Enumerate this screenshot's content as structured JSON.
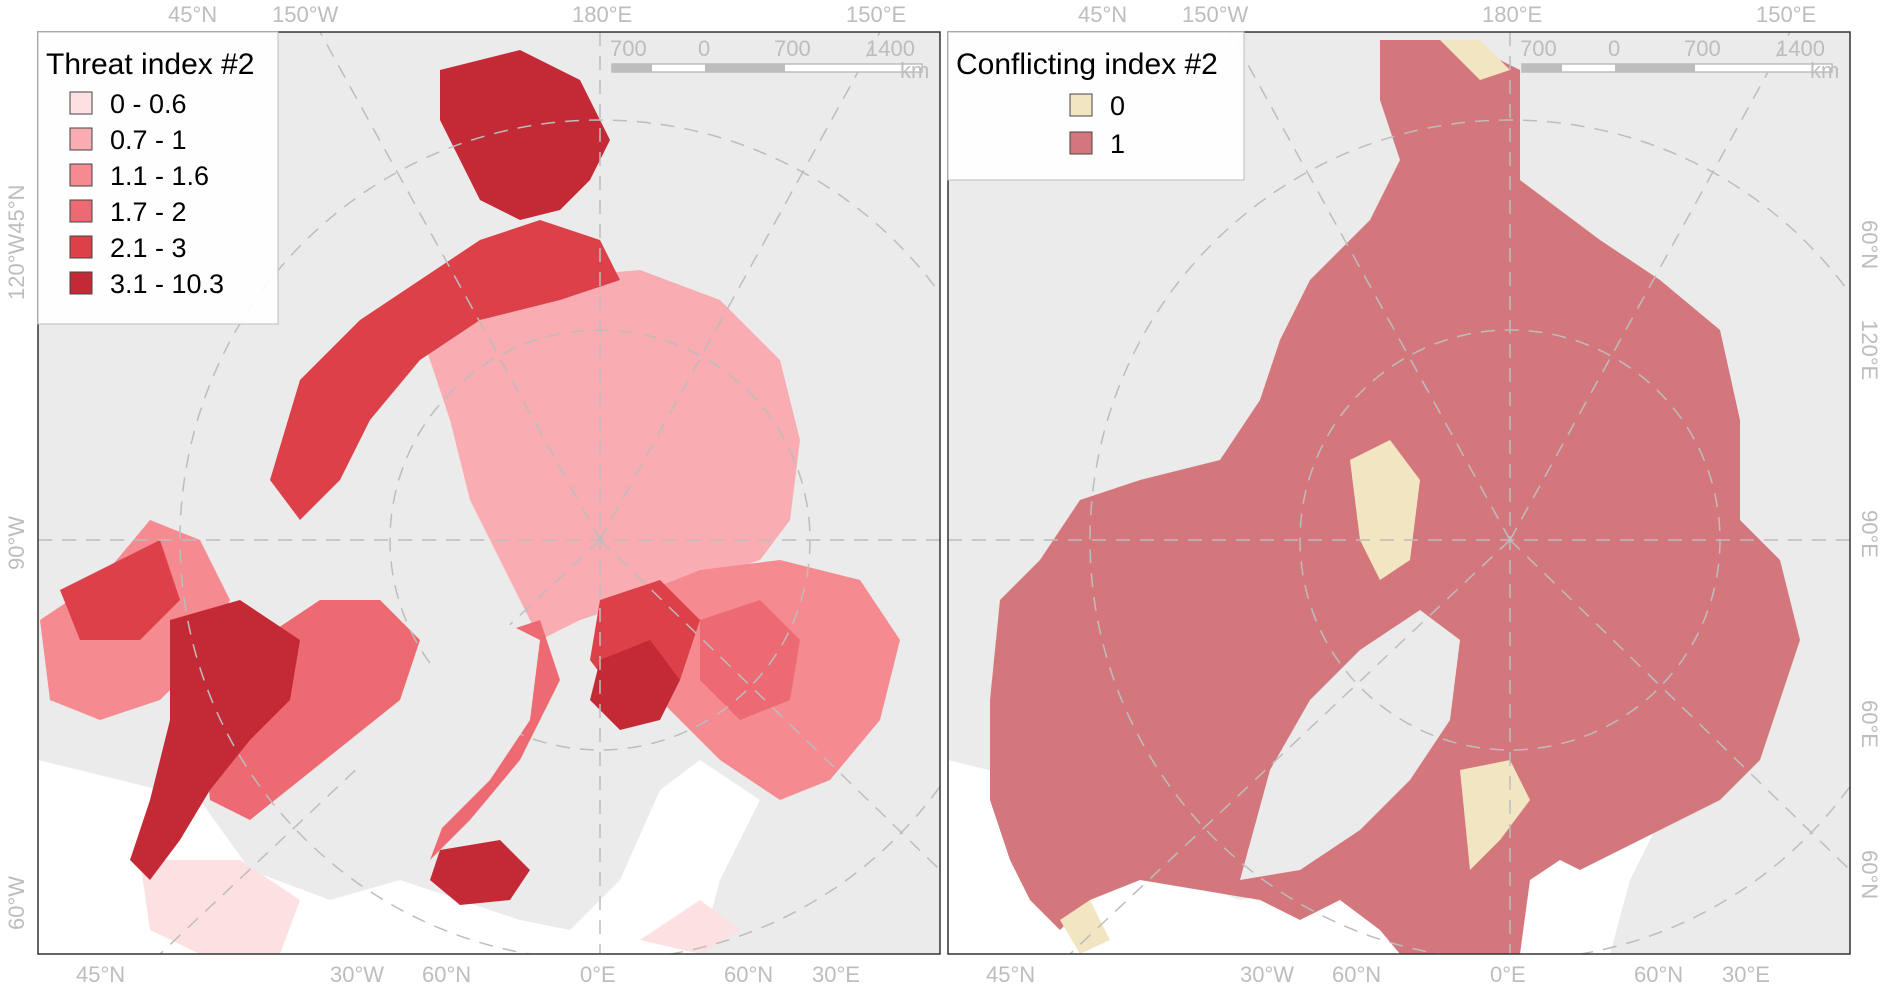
{
  "panels": [
    {
      "legend": {
        "title": "Threat index #2",
        "classes": [
          {
            "label": "0 - 0.6",
            "color": "#fde0e1"
          },
          {
            "label": "0.7 - 1",
            "color": "#f9acb1"
          },
          {
            "label": "1.1 - 1.6",
            "color": "#f58a91"
          },
          {
            "label": "1.7 - 2",
            "color": "#ee6a73"
          },
          {
            "label": "2.1 - 3",
            "color": "#dc4049"
          },
          {
            "label": "3.1 - 10.3",
            "color": "#c42a35"
          }
        ]
      },
      "scale_bar": {
        "ticks": [
          "700",
          "0",
          "700",
          "1400"
        ],
        "unit": "km"
      },
      "graticule_labels": {
        "top": [
          "45°N",
          "150°W",
          "180°E",
          "150°E"
        ],
        "bottom": [
          "45°N",
          "30°W",
          "60°N",
          "0°E",
          "60°N",
          "30°E"
        ],
        "left": [
          "120°W45°N",
          "90°W",
          "60°W"
        ],
        "right": []
      }
    },
    {
      "legend": {
        "title": "Conflicting index #2",
        "classes": [
          {
            "label": "0",
            "color": "#f2e6c2"
          },
          {
            "label": "1",
            "color": "#d4777d"
          }
        ]
      },
      "scale_bar": {
        "ticks": [
          "700",
          "0",
          "700",
          "1400"
        ],
        "unit": "km"
      },
      "graticule_labels": {
        "top": [
          "45°N",
          "150°W",
          "180°E",
          "150°E"
        ],
        "bottom": [
          "45°N",
          "30°W",
          "60°N",
          "0°E",
          "60°N",
          "30°E"
        ],
        "left": [],
        "right": [
          "60°N",
          "120°E",
          "90°E",
          "60°E",
          "60°N"
        ]
      }
    }
  ],
  "colors": {
    "land": "#ebebeb",
    "panel_border": "#333333",
    "graticule": "#bdbdbd",
    "coast": "#9a9a9a"
  }
}
